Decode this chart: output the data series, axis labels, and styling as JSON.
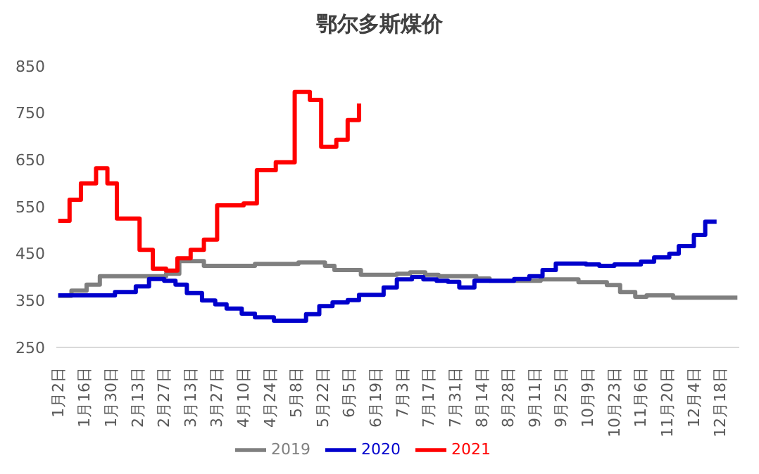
{
  "chart_data": {
    "type": "step",
    "title": "鄂尔多斯煤价",
    "xlim": [
      "--01-01",
      "--12-28"
    ],
    "xticks": [
      {
        "value": "--01-02",
        "label": "1月2日"
      },
      {
        "value": "--01-16",
        "label": "1月16日"
      },
      {
        "value": "--01-30",
        "label": "1月30日"
      },
      {
        "value": "--02-13",
        "label": "2月13日"
      },
      {
        "value": "--02-27",
        "label": "2月27日"
      },
      {
        "value": "--03-13",
        "label": "3月13日"
      },
      {
        "value": "--03-27",
        "label": "3月27日"
      },
      {
        "value": "--04-10",
        "label": "4月10日"
      },
      {
        "value": "--04-24",
        "label": "4月24日"
      },
      {
        "value": "--05-08",
        "label": "5月8日"
      },
      {
        "value": "--05-22",
        "label": "5月22日"
      },
      {
        "value": "--06-05",
        "label": "6月5日"
      },
      {
        "value": "--06-19",
        "label": "6月19日"
      },
      {
        "value": "--07-03",
        "label": "7月3日"
      },
      {
        "value": "--07-17",
        "label": "7月17日"
      },
      {
        "value": "--07-31",
        "label": "7月31日"
      },
      {
        "value": "--08-14",
        "label": "8月14日"
      },
      {
        "value": "--08-28",
        "label": "8月28日"
      },
      {
        "value": "--09-11",
        "label": "9月11日"
      },
      {
        "value": "--09-25",
        "label": "9月25日"
      },
      {
        "value": "--10-09",
        "label": "10月9日"
      },
      {
        "value": "--10-23",
        "label": "10月23日"
      },
      {
        "value": "--11-06",
        "label": "11月6日"
      },
      {
        "value": "--11-20",
        "label": "11月20日"
      },
      {
        "value": "--12-04",
        "label": "12月4日"
      },
      {
        "value": "--12-18",
        "label": "12月18日"
      }
    ],
    "ylim": [
      250,
      850
    ],
    "yticks": [
      250,
      350,
      450,
      550,
      650,
      750,
      850
    ],
    "grid": false,
    "legend": "bottom",
    "line_style": "solid",
    "marker": "none",
    "series": [
      {
        "name": "2019",
        "color": "#7f7f7f",
        "x": [
          "--01-02",
          "--01-09",
          "--01-17",
          "--01-24",
          "--02-28",
          "--03-07",
          "--03-20",
          "--04-16",
          "--05-09",
          "--05-23",
          "--05-28",
          "--06-11",
          "--06-30",
          "--07-07",
          "--07-15",
          "--07-22",
          "--08-11",
          "--08-18",
          "--09-14",
          "--10-04",
          "--10-19",
          "--10-26",
          "--11-03",
          "--11-09",
          "--11-23",
          "--12-27"
        ],
        "values": [
          360,
          371,
          384,
          402,
          407,
          434,
          424,
          428,
          431,
          424,
          415,
          405,
          407,
          410,
          405,
          402,
          397,
          392,
          395,
          389,
          383,
          368,
          358,
          361,
          356,
          356
        ]
      },
      {
        "name": "2020",
        "color": "#0000cc",
        "x": [
          "--01-02",
          "--02-01",
          "--02-12",
          "--02-19",
          "--02-27",
          "--03-05",
          "--03-11",
          "--03-19",
          "--03-26",
          "--04-01",
          "--04-09",
          "--04-16",
          "--04-26",
          "--05-13",
          "--05-20",
          "--05-27",
          "--06-04",
          "--06-10",
          "--06-23",
          "--06-30",
          "--07-08",
          "--07-14",
          "--07-21",
          "--07-27",
          "--08-02",
          "--08-10",
          "--08-31",
          "--09-08",
          "--09-15",
          "--09-22",
          "--10-08",
          "--10-15",
          "--10-23",
          "--11-06",
          "--11-13",
          "--11-21",
          "--11-26",
          "--12-04",
          "--12-10",
          "--12-16"
        ],
        "values": [
          361,
          368,
          380,
          396,
          392,
          384,
          366,
          350,
          342,
          333,
          322,
          314,
          307,
          321,
          338,
          346,
          351,
          362,
          378,
          395,
          400,
          395,
          392,
          390,
          378,
          392,
          396,
          402,
          415,
          429,
          427,
          424,
          427,
          433,
          442,
          450,
          466,
          490,
          518,
          518
        ]
      },
      {
        "name": "2021",
        "color": "#ff0000",
        "x": [
          "--01-02",
          "--01-08",
          "--01-14",
          "--01-22",
          "--01-28",
          "--02-02",
          "--02-14",
          "--02-21",
          "--02-28",
          "--03-06",
          "--03-13",
          "--03-20",
          "--03-27",
          "--04-10",
          "--04-17",
          "--04-27",
          "--05-07",
          "--05-15",
          "--05-21",
          "--05-29",
          "--06-04",
          "--06-10"
        ],
        "values": [
          520,
          565,
          600,
          632,
          600,
          525,
          458,
          418,
          414,
          440,
          458,
          480,
          553,
          557,
          628,
          645,
          795,
          778,
          678,
          693,
          735,
          770
        ]
      }
    ]
  }
}
